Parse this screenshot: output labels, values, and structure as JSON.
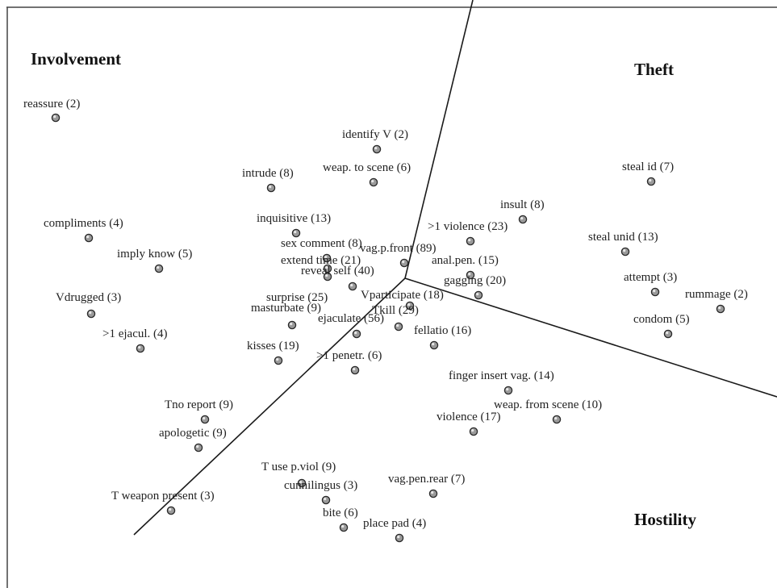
{
  "colors": {
    "frame": "#444444",
    "axis_line": "#1a1a1a",
    "point_fill": "#9a9a9a",
    "point_stroke": "#2a2a2a",
    "text": "#222222"
  },
  "regions": [
    {
      "id": "involvement",
      "label": "Involvement"
    },
    {
      "id": "theft",
      "label": "Theft"
    },
    {
      "id": "hostility",
      "label": "Hostility"
    }
  ],
  "points": [
    {
      "id": "reassure",
      "label": "reassure (2)"
    },
    {
      "id": "identify-v",
      "label": "identify V (2)"
    },
    {
      "id": "weap-to-scene",
      "label": "weap. to scene (6)"
    },
    {
      "id": "intrude",
      "label": "intrude (8)"
    },
    {
      "id": "steal-id",
      "label": "steal id (7)"
    },
    {
      "id": "insult",
      "label": "insult (8)"
    },
    {
      "id": "compliments",
      "label": "compliments (4)"
    },
    {
      "id": "inquisitive",
      "label": "inquisitive (13)"
    },
    {
      "id": "gt1-violence",
      "label": ">1 violence (23)"
    },
    {
      "id": "steal-unid",
      "label": "steal unid (13)"
    },
    {
      "id": "sex-comment",
      "label": "sex comment (8)"
    },
    {
      "id": "vag-p-front",
      "label": "vag.p.front (89)"
    },
    {
      "id": "imply-know",
      "label": "imply know (5)"
    },
    {
      "id": "extend-time",
      "label": "extend time (21)"
    },
    {
      "id": "anal-pen",
      "label": "anal.pen. (15)"
    },
    {
      "id": "reveal-self",
      "label": "reveal self (40)"
    },
    {
      "id": "attempt",
      "label": "attempt (3)"
    },
    {
      "id": "gagging",
      "label": "gagging (20)"
    },
    {
      "id": "rummage",
      "label": "rummage (2)"
    },
    {
      "id": "vdrugged",
      "label": "Vdrugged (3)"
    },
    {
      "id": "surprise",
      "label": "surprise (25)"
    },
    {
      "id": "vparticipate",
      "label": "Vparticipate (18)"
    },
    {
      "id": "masturbate",
      "label": "masturbate (9)"
    },
    {
      "id": "tkill",
      "label": "Tkill (29)"
    },
    {
      "id": "condom",
      "label": "condom (5)"
    },
    {
      "id": "ejaculate",
      "label": "ejaculate (56)"
    },
    {
      "id": "gt1-ejacul",
      "label": ">1 ejacul. (4)"
    },
    {
      "id": "fellatio",
      "label": "fellatio (16)"
    },
    {
      "id": "kisses",
      "label": "kisses (19)"
    },
    {
      "id": "gt1-penetr",
      "label": ">1 penetr. (6)"
    },
    {
      "id": "finger-insert-vag",
      "label": "finger insert vag. (14)"
    },
    {
      "id": "weap-from-scene",
      "label": "weap. from scene (10)"
    },
    {
      "id": "tno-report",
      "label": "Tno report (9)"
    },
    {
      "id": "violence",
      "label": "violence (17)"
    },
    {
      "id": "apologetic",
      "label": "apologetic (9)"
    },
    {
      "id": "t-use-p-viol",
      "label": "T use p.viol (9)"
    },
    {
      "id": "vag-pen-rear",
      "label": "vag.pen.rear (7)"
    },
    {
      "id": "cunnilingus",
      "label": "cunnilingus (3)"
    },
    {
      "id": "t-weapon-present",
      "label": "T weapon present (3)"
    },
    {
      "id": "bite",
      "label": "bite (6)"
    },
    {
      "id": "place-pad",
      "label": "place pad (4)"
    }
  ]
}
